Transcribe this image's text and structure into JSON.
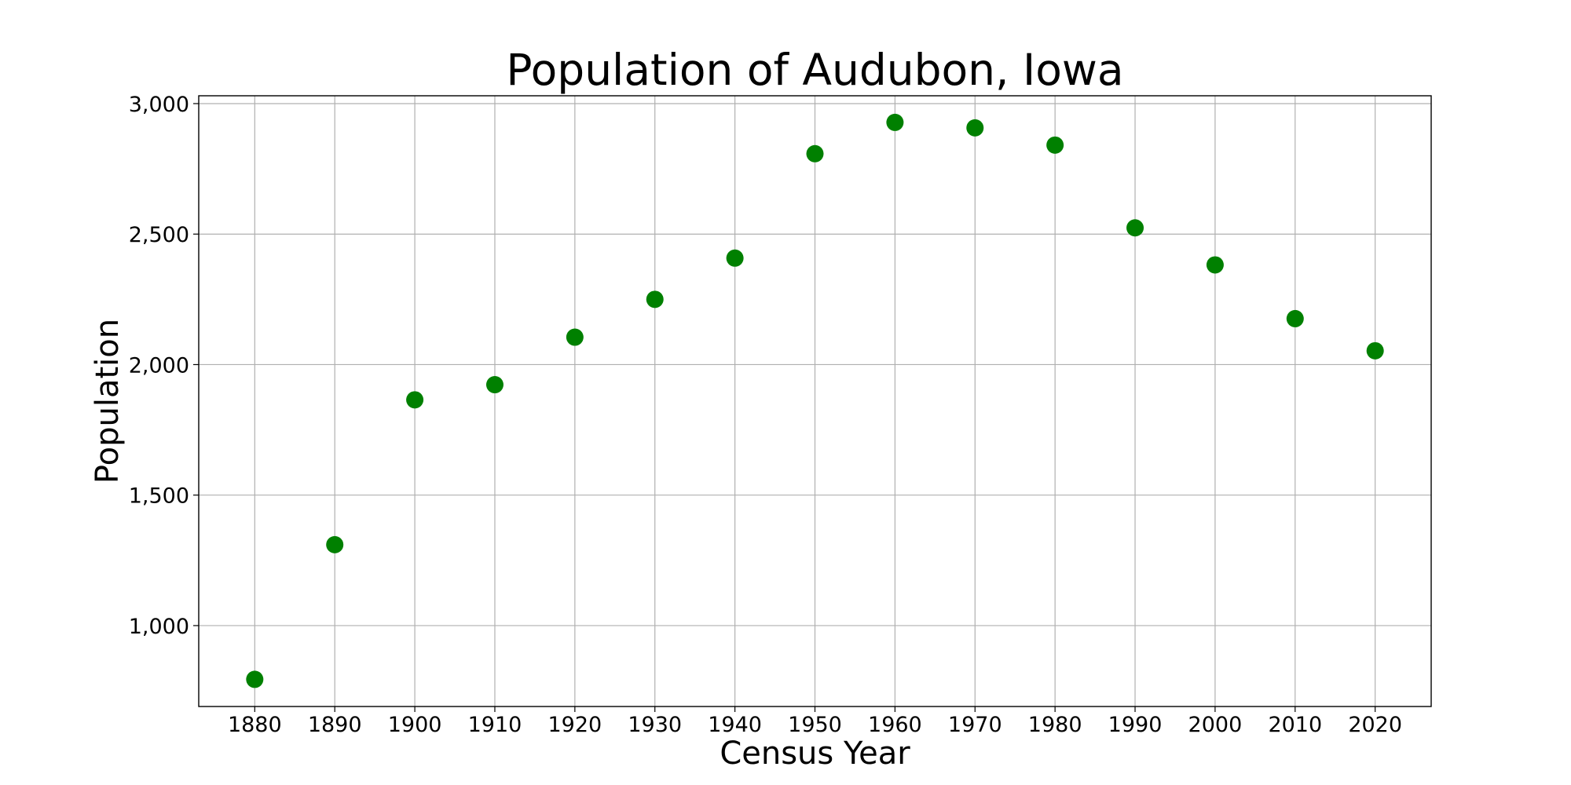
{
  "chart_data": {
    "type": "scatter",
    "title": "Population of Audubon, Iowa",
    "xlabel": "Census Year",
    "ylabel": "Population",
    "x": [
      1880,
      1890,
      1900,
      1910,
      1920,
      1930,
      1940,
      1950,
      1960,
      1970,
      1980,
      1990,
      2000,
      2010,
      2020
    ],
    "y": [
      794,
      1310,
      1865,
      1923,
      2105,
      2250,
      2408,
      2808,
      2928,
      2907,
      2841,
      2524,
      2382,
      2176,
      2053
    ],
    "xlim": [
      1873,
      2027
    ],
    "ylim": [
      690,
      3030
    ],
    "xticks": [
      1880,
      1890,
      1900,
      1910,
      1920,
      1930,
      1940,
      1950,
      1960,
      1970,
      1980,
      1990,
      2000,
      2010,
      2020
    ],
    "xtick_labels": [
      "1880",
      "1890",
      "1900",
      "1910",
      "1920",
      "1930",
      "1940",
      "1950",
      "1960",
      "1970",
      "1980",
      "1990",
      "2000",
      "2010",
      "2020"
    ],
    "yticks": [
      1000,
      1500,
      2000,
      2500,
      3000
    ],
    "ytick_labels": [
      "1,000",
      "1,500",
      "2,000",
      "2,500",
      "3,000"
    ],
    "grid": true,
    "marker_color": "#008000"
  }
}
